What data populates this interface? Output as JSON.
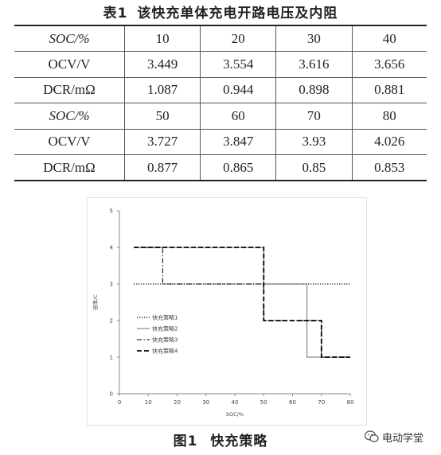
{
  "table_title": {
    "number": "表1",
    "text": "该快充单体充电开路电压及内阻"
  },
  "table": {
    "rows": [
      {
        "label": "SOC/%",
        "italic": true,
        "cells": [
          "10",
          "20",
          "30",
          "40"
        ]
      },
      {
        "label": "OCV/V",
        "italic": false,
        "cells": [
          "3.449",
          "3.554",
          "3.616",
          "3.656"
        ]
      },
      {
        "label": "DCR/mΩ",
        "italic": false,
        "cells": [
          "1.087",
          "0.944",
          "0.898",
          "0.881"
        ]
      },
      {
        "label": "SOC/%",
        "italic": true,
        "cells": [
          "50",
          "60",
          "70",
          "80"
        ]
      },
      {
        "label": "OCV/V",
        "italic": false,
        "cells": [
          "3.727",
          "3.847",
          "3.93",
          "4.026"
        ]
      },
      {
        "label": "DCR/mΩ",
        "italic": false,
        "cells": [
          "0.877",
          "0.865",
          "0.85",
          "0.853"
        ]
      }
    ]
  },
  "chart_data": {
    "type": "line",
    "title": "",
    "xlabel": "SOC/%",
    "ylabel": "倍率/C",
    "xlim": [
      0,
      80
    ],
    "ylim": [
      0,
      5
    ],
    "x_ticks": [
      "0",
      "10",
      "20",
      "30",
      "40",
      "50",
      "60",
      "70",
      "80"
    ],
    "y_ticks": [
      "0",
      "1",
      "2",
      "3",
      "4",
      "5"
    ],
    "grid": false,
    "legend_position": "left",
    "series": [
      {
        "name": "快充策略1",
        "style": "dotted",
        "color": "#333333",
        "points": [
          [
            5,
            3
          ],
          [
            80,
            3
          ]
        ]
      },
      {
        "name": "快充策略2",
        "style": "solid",
        "color": "#888888",
        "points": [
          [
            5,
            4
          ],
          [
            50,
            4
          ],
          [
            50,
            3
          ],
          [
            65,
            3
          ],
          [
            65,
            1
          ],
          [
            80,
            1
          ]
        ]
      },
      {
        "name": "快充策略3",
        "style": "dashdot",
        "color": "#333333",
        "points": [
          [
            5,
            4
          ],
          [
            15,
            4
          ],
          [
            15,
            3
          ],
          [
            50,
            3
          ],
          [
            50,
            2
          ],
          [
            70,
            2
          ],
          [
            70,
            1
          ],
          [
            80,
            1
          ]
        ]
      },
      {
        "name": "快充策略4",
        "style": "dashed",
        "color": "#000000",
        "points": [
          [
            5,
            4
          ],
          [
            50,
            4
          ],
          [
            50,
            2
          ],
          [
            70,
            2
          ],
          [
            70,
            1
          ],
          [
            80,
            1
          ]
        ]
      }
    ]
  },
  "figure_caption": {
    "number": "图1",
    "text": "快充策略"
  },
  "watermark": {
    "text": "电动学堂",
    "icon": "wechat-icon"
  }
}
